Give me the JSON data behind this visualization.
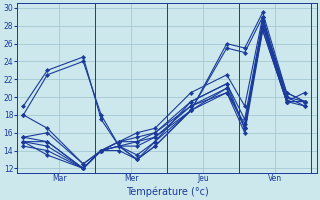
{
  "xlabel": "Température (°c)",
  "bg_color": "#cce8ed",
  "line_color": "#1a3a9c",
  "grid_color": "#9dc4cc",
  "yticks": [
    12,
    14,
    16,
    18,
    20,
    22,
    24,
    26,
    28,
    30
  ],
  "ylim": [
    11.5,
    30.5
  ],
  "xlim": [
    -2,
    98
  ],
  "day_lines": [
    24,
    48,
    72,
    96
  ],
  "xtick_positions": [
    12,
    36,
    60,
    84
  ],
  "xtick_labels": [
    "Mar",
    "Mer",
    "Jeu",
    "Ven"
  ],
  "series": [
    [
      19.0,
      23.0,
      24.5,
      17.5,
      14.5,
      13.0,
      14.5,
      18.5,
      26.0,
      25.5,
      29.5,
      20.5,
      19.5
    ],
    [
      18.0,
      22.5,
      24.0,
      18.0,
      14.5,
      13.0,
      14.5,
      18.5,
      25.5,
      25.0,
      29.0,
      20.0,
      19.0
    ],
    [
      18.0,
      16.5,
      12.5,
      14.0,
      14.0,
      13.0,
      15.0,
      19.5,
      21.5,
      16.5,
      28.5,
      20.5,
      19.5
    ],
    [
      15.5,
      16.0,
      12.5,
      14.0,
      14.5,
      13.5,
      15.0,
      18.5,
      21.0,
      16.5,
      28.0,
      20.0,
      19.5
    ],
    [
      15.0,
      15.0,
      12.0,
      14.0,
      14.5,
      14.5,
      15.5,
      18.5,
      20.5,
      16.0,
      27.5,
      19.5,
      19.5
    ],
    [
      15.5,
      15.0,
      12.0,
      14.0,
      14.5,
      15.0,
      16.0,
      19.0,
      21.0,
      16.5,
      28.0,
      19.5,
      19.5
    ],
    [
      15.0,
      14.5,
      12.0,
      14.0,
      15.0,
      15.0,
      15.5,
      19.0,
      20.5,
      17.0,
      27.5,
      19.5,
      19.0
    ],
    [
      14.5,
      14.0,
      12.0,
      14.0,
      15.0,
      15.5,
      16.0,
      19.5,
      21.5,
      17.5,
      28.5,
      19.5,
      19.5
    ],
    [
      15.0,
      13.5,
      12.0,
      14.0,
      15.0,
      16.0,
      16.5,
      20.5,
      22.5,
      19.0,
      29.0,
      19.5,
      20.5
    ]
  ],
  "x_positions": [
    0,
    8,
    20,
    26,
    32,
    38,
    44,
    56,
    68,
    74,
    80,
    88,
    94
  ]
}
